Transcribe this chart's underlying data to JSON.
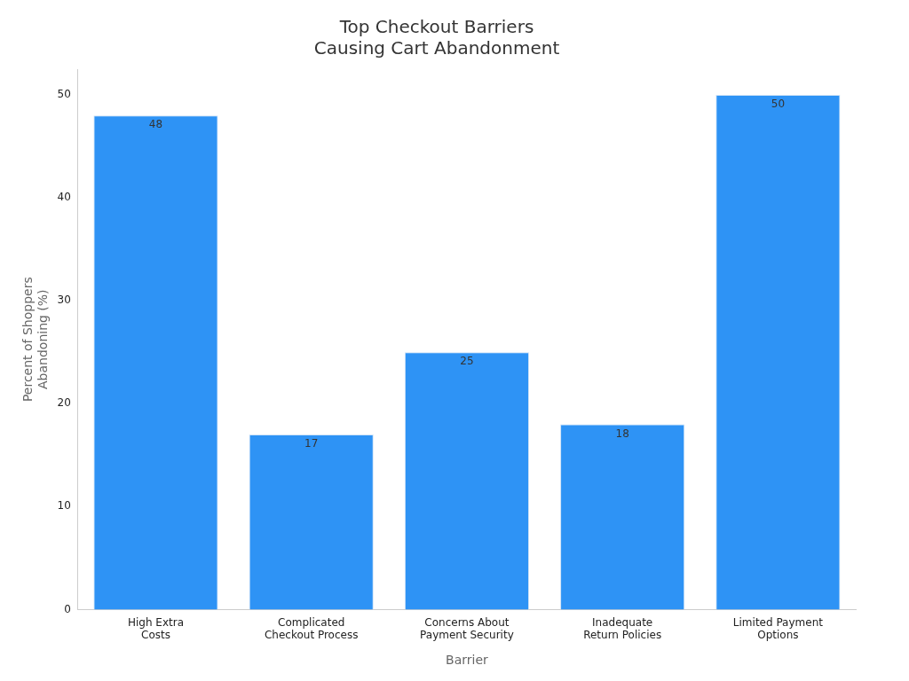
{
  "chart_data": {
    "type": "bar",
    "title": "Top Checkout Barriers\nCausing Cart Abandonment",
    "xlabel": "Barrier",
    "ylabel": "Percent of Shoppers Abandoning (%)",
    "categories": [
      "High Extra Costs",
      "Complicated Checkout Process",
      "Concerns About Payment Security",
      "Inadequate Return Policies",
      "Limited Payment Options"
    ],
    "values": [
      48,
      17,
      25,
      18,
      50
    ],
    "color": "#2e93f5",
    "ylim": [
      0,
      52.5
    ],
    "yticks": [
      0,
      10,
      20,
      30,
      40,
      50
    ],
    "grid": false,
    "legend": false,
    "data_labels": true
  }
}
